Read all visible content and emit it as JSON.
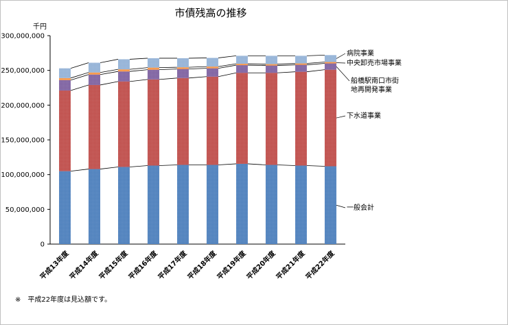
{
  "chart_data": {
    "type": "bar",
    "stacked": true,
    "title": "市債残高の推移",
    "unit_label": "千円",
    "ylim": [
      0,
      300000000
    ],
    "yticks": [
      0,
      50000000,
      100000000,
      150000000,
      200000000,
      250000000,
      300000000
    ],
    "ytick_labels": [
      "0",
      "50,000,000",
      "100,000,000",
      "150,000,000",
      "200,000,000",
      "250,000,000",
      "300,000,000"
    ],
    "categories": [
      "平成13年度",
      "平成14年度",
      "平成15年度",
      "平成16年度",
      "平成17年度",
      "平成18年度",
      "平成19年度",
      "平成20年度",
      "平成21年度",
      "平成22年度"
    ],
    "series": [
      {
        "name": "一般会計",
        "color": "#4f81bd",
        "values": [
          105000000,
          108000000,
          111000000,
          113000000,
          114000000,
          114000000,
          115500000,
          114000000,
          113000000,
          112000000
        ]
      },
      {
        "name": "下水道事業",
        "color": "#c0504d",
        "values": [
          116000000,
          121000000,
          123000000,
          124000000,
          125000000,
          127000000,
          131000000,
          132500000,
          135000000,
          139000000
        ]
      },
      {
        "name": "船橋駅南口市街地再開発事業",
        "color": "#8064a2",
        "values": [
          15000000,
          15000000,
          14500000,
          14000000,
          13000000,
          12000000,
          11000000,
          10500000,
          10000000,
          9000000
        ]
      },
      {
        "name": "中央卸売市場事業",
        "color": "#f79646",
        "values": [
          3000000,
          3000000,
          3000000,
          3000000,
          2500000,
          2500000,
          2000000,
          2000000,
          2000000,
          2000000
        ]
      },
      {
        "name": "病院事業",
        "color": "#95b3d7",
        "values": [
          14000000,
          14000000,
          14500000,
          13500000,
          13000000,
          12500000,
          11500000,
          12000000,
          11000000,
          10000000
        ]
      }
    ],
    "legend_placement": "right, inline labels with leader lines",
    "grid": false
  },
  "footnote": "※　平成22年度は見込額です。"
}
